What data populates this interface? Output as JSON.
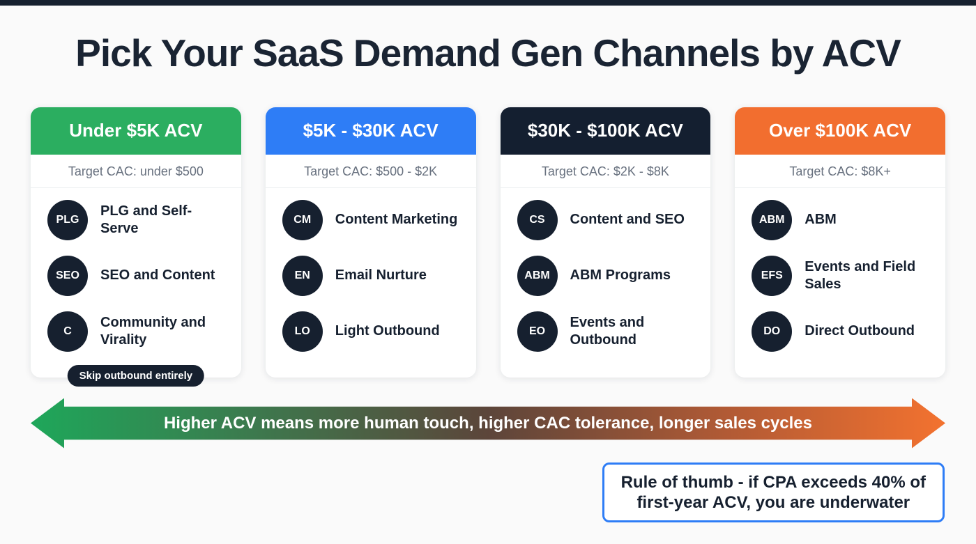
{
  "top_border_color": "#16202f",
  "title": "Pick Your SaaS Demand Gen Channels by ACV",
  "columns": [
    {
      "header": "Under $5K ACV",
      "header_color": "#2bae60",
      "subtitle": "Target CAC: under $500",
      "items": [
        {
          "badge": "PLG",
          "label": "PLG and Self-Serve"
        },
        {
          "badge": "SEO",
          "label": "SEO and Content"
        },
        {
          "badge": "C",
          "label": "Community and Virality"
        }
      ],
      "footnote": "Skip outbound entirely"
    },
    {
      "header": "$5K - $30K ACV",
      "header_color": "#2e7df6",
      "subtitle": "Target CAC: $500 - $2K",
      "items": [
        {
          "badge": "CM",
          "label": "Content Marketing"
        },
        {
          "badge": "EN",
          "label": "Email Nurture"
        },
        {
          "badge": "LO",
          "label": "Light Outbound"
        }
      ]
    },
    {
      "header": "$30K - $100K ACV",
      "header_color": "#141f30",
      "subtitle": "Target CAC: $2K - $8K",
      "items": [
        {
          "badge": "CS",
          "label": "Content and SEO"
        },
        {
          "badge": "ABM",
          "label": "ABM Programs"
        },
        {
          "badge": "EO",
          "label": "Events and Outbound"
        }
      ]
    },
    {
      "header": "Over $100K ACV",
      "header_color": "#f26e2f",
      "subtitle": "Target CAC: $8K+",
      "items": [
        {
          "badge": "ABM",
          "label": "ABM"
        },
        {
          "badge": "EFS",
          "label": "Events and Field Sales"
        },
        {
          "badge": "DO",
          "label": "Direct Outbound"
        }
      ]
    }
  ],
  "arrow": {
    "label": "Higher ACV means more human touch, higher CAC tolerance, longer sales cycles",
    "gradient_start": "#1ea75a",
    "gradient_end": "#f3722f"
  },
  "callout": {
    "line1": "Rule of thumb - if CPA exceeds 40% of",
    "line2": "first-year ACV, you are underwater",
    "border_color": "#2e7df6"
  }
}
